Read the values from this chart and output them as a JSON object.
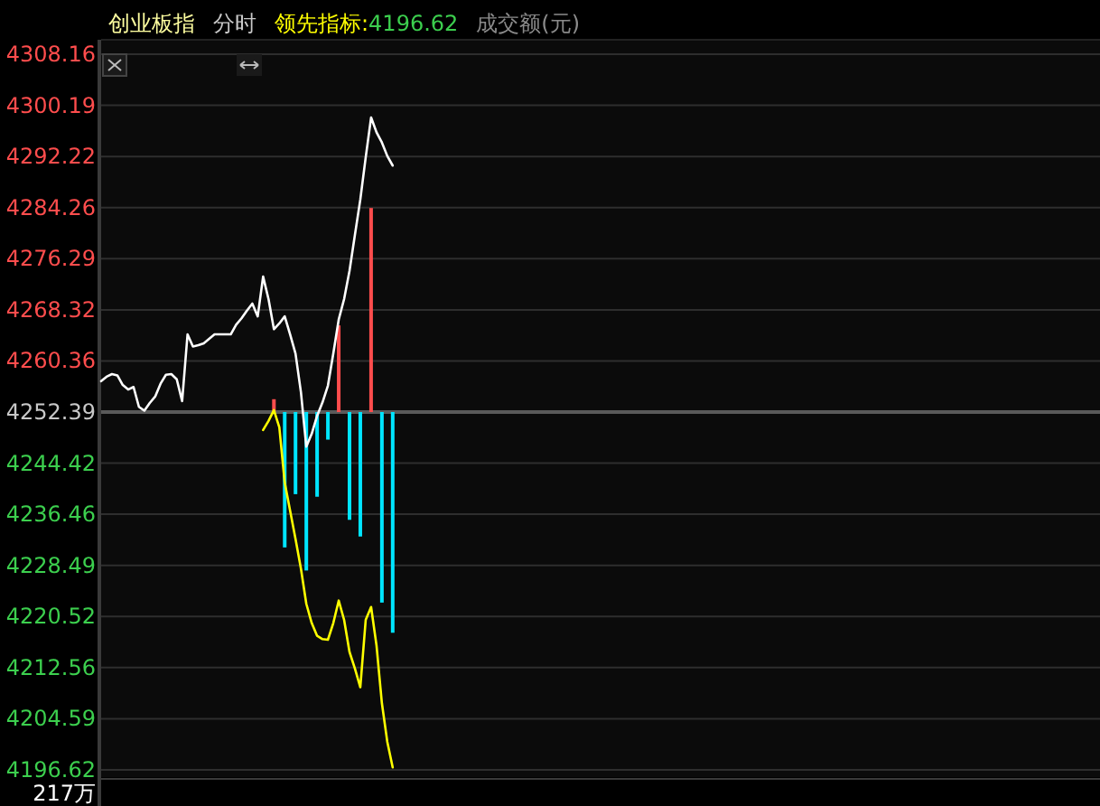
{
  "chart_data": {
    "type": "line",
    "title": "创业板指",
    "subtitle": "分时",
    "annotations": [
      "4196.62",
      "成交额(元)",
      "217万"
    ],
    "legend": "top",
    "grid": "y",
    "ylim": [
      4196.62,
      4308.16
    ],
    "yticks": [
      4308.16,
      4300.19,
      4292.22,
      4284.26,
      4276.29,
      4268.32,
      4260.36,
      4252.39,
      4244.42,
      4236.46,
      4228.49,
      4220.52,
      4212.56,
      4204.59,
      4196.62
    ],
    "ref_lines": [
      {
        "axis": "y",
        "value": 4252.39,
        "color": "#5a5a5a"
      }
    ],
    "categories": [
      null,
      null,
      null,
      null,
      null,
      null,
      null,
      null,
      null,
      null,
      null,
      null,
      null,
      null,
      null,
      null,
      null,
      null,
      null,
      null,
      null,
      null,
      null,
      null,
      null,
      null,
      null,
      null,
      null,
      null,
      null,
      null,
      null,
      null,
      null,
      null,
      null,
      null,
      null,
      null,
      null,
      null,
      null,
      null,
      null,
      null,
      null,
      null,
      null,
      null,
      null,
      null,
      null,
      null,
      null,
      null,
      null,
      null,
      null,
      null,
      null,
      null,
      null,
      null,
      null,
      null,
      null,
      null,
      null,
      null,
      null,
      null,
      null,
      null,
      null,
      null,
      null,
      null,
      null,
      null,
      null,
      null,
      null,
      null,
      null,
      null,
      null,
      null,
      null,
      null,
      null,
      null,
      null,
      null,
      null,
      null,
      null,
      null,
      null,
      null,
      null,
      null,
      null,
      null,
      null,
      null,
      null,
      null,
      null,
      null,
      null,
      null,
      null,
      null,
      null,
      null,
      null,
      null,
      null,
      null,
      null,
      null,
      null,
      null,
      null,
      null,
      null,
      null,
      null,
      null,
      null,
      null,
      null,
      null,
      null,
      null,
      null,
      null,
      null,
      null,
      null,
      null,
      null,
      null,
      null,
      null,
      null,
      null,
      null,
      null,
      null,
      null,
      null,
      null,
      null,
      null,
      null,
      null,
      null,
      null,
      null,
      null,
      null,
      null,
      null,
      null,
      null,
      null,
      null,
      null,
      null,
      null,
      null,
      null,
      null,
      null,
      null,
      null,
      null,
      null,
      null,
      null,
      null,
      null,
      null
    ],
    "series": [
      {
        "type": "bar",
        "base": [
          null,
          null,
          null,
          null,
          null,
          null,
          null,
          null,
          null,
          null,
          null,
          null,
          null,
          null,
          null,
          null,
          null,
          null,
          null,
          null,
          null,
          null,
          null,
          null,
          null,
          null,
          null,
          null,
          null,
          null,
          null,
          null,
          4252.39,
          null,
          4252.39,
          null,
          4252.39,
          null,
          4252.39,
          null,
          4252.39,
          null,
          4252.39,
          null,
          4252.39,
          null,
          4252.39,
          null,
          4252.39,
          null,
          4252.39,
          null,
          4252.39,
          null,
          4252.39,
          null,
          null,
          null,
          null,
          null,
          null,
          null,
          null,
          null,
          null,
          null,
          null,
          null,
          null,
          null,
          null,
          null,
          null,
          null,
          null,
          null,
          null,
          null,
          null,
          null,
          null,
          null,
          null,
          null,
          null,
          null,
          null,
          null,
          null,
          null,
          null,
          null,
          null,
          null,
          null,
          null,
          null,
          null,
          null,
          null,
          null,
          null,
          null,
          null,
          null,
          null,
          null,
          null,
          null,
          null,
          null,
          null,
          null,
          null,
          null,
          null,
          null,
          null,
          null,
          null,
          null,
          null,
          null,
          null,
          null,
          null,
          null,
          null,
          null,
          null,
          null,
          null,
          null,
          null,
          null,
          null,
          null,
          null,
          null,
          null,
          null,
          null,
          null,
          null,
          null,
          null,
          null,
          null,
          null,
          null,
          null,
          null,
          null,
          null,
          null,
          null,
          null,
          null,
          null,
          null,
          null,
          null,
          null,
          null,
          null,
          null,
          null,
          null,
          null,
          null,
          null,
          null,
          null,
          null,
          null,
          null,
          null,
          null,
          null,
          null,
          null,
          null,
          null,
          null,
          null
        ],
        "colors": [
          null,
          null,
          null,
          null,
          null,
          null,
          null,
          null,
          null,
          null,
          null,
          null,
          null,
          null,
          null,
          null,
          null,
          null,
          null,
          null,
          null,
          null,
          null,
          null,
          null,
          null,
          null,
          null,
          null,
          null,
          null,
          null,
          "#ff4d4d",
          null,
          "#00e5ff",
          null,
          "#00e5ff",
          null,
          "#00e5ff",
          null,
          "#00e5ff",
          null,
          "#00e5ff",
          null,
          "#ff4d4d",
          null,
          "#00e5ff",
          null,
          "#00e5ff",
          null,
          "#ff4d4d",
          null,
          "#00e5ff",
          null,
          "#00e5ff",
          null,
          null,
          null,
          null,
          null,
          null,
          null,
          null,
          null,
          null,
          null,
          null,
          null,
          null,
          null,
          null,
          null,
          null,
          null,
          null,
          null,
          null,
          null,
          null,
          null,
          null,
          null,
          null,
          null,
          null,
          null,
          null,
          null,
          null,
          null,
          null,
          null,
          null,
          null,
          null,
          null,
          null,
          null,
          null,
          null,
          null,
          null,
          null,
          null,
          null,
          null,
          null,
          null,
          null,
          null,
          null,
          null,
          null,
          null,
          null,
          null,
          null,
          null,
          null,
          null,
          null,
          null,
          null,
          null,
          null,
          null,
          null,
          null,
          null,
          null,
          null,
          null,
          null,
          null,
          null,
          null,
          null,
          null,
          null,
          null,
          null,
          null,
          null,
          null,
          null,
          null,
          null,
          null,
          null,
          null,
          null,
          null,
          null,
          null,
          null,
          null,
          null,
          null,
          null,
          null,
          null,
          null,
          null,
          null,
          null,
          null,
          null,
          null,
          null,
          null,
          null,
          null,
          null,
          null,
          null,
          null,
          null,
          null,
          null,
          null,
          null,
          null,
          null,
          null,
          null
        ],
        "values": [
          null,
          null,
          null,
          null,
          null,
          null,
          null,
          null,
          null,
          null,
          null,
          null,
          null,
          null,
          null,
          null,
          null,
          null,
          null,
          null,
          null,
          null,
          null,
          null,
          null,
          null,
          null,
          null,
          null,
          null,
          null,
          null,
          2.0,
          null,
          -21.1,
          null,
          -12.8,
          null,
          -24.7,
          null,
          -13.2,
          null,
          -4.3,
          null,
          13.5,
          null,
          -16.8,
          null,
          -19.4,
          null,
          31.8,
          null,
          -29.7,
          null,
          -34.4,
          null,
          null,
          null,
          null,
          null,
          null,
          null,
          null,
          null,
          null,
          null,
          null,
          null,
          null,
          null,
          null,
          null,
          null,
          null,
          null,
          null,
          null,
          null,
          null,
          null,
          null,
          null,
          null,
          null,
          null,
          null,
          null,
          null,
          null,
          null,
          null,
          null,
          null,
          null,
          null,
          null,
          null,
          null,
          null,
          null,
          null,
          null,
          null,
          null,
          null,
          null,
          null,
          null,
          null,
          null,
          null,
          null,
          null,
          null,
          null,
          null,
          null,
          null,
          null,
          null,
          null,
          null,
          null,
          null,
          null,
          null,
          null,
          null,
          null,
          null,
          null,
          null,
          null,
          null,
          null,
          null,
          null,
          null,
          null,
          null,
          null,
          null,
          null,
          null,
          null,
          null,
          null,
          null,
          null,
          null,
          null,
          null,
          null,
          null,
          null,
          null,
          null,
          null,
          null,
          null,
          null,
          null,
          null,
          null,
          null,
          null,
          null,
          null,
          null,
          null,
          null,
          null,
          null,
          null,
          null,
          null,
          null,
          null,
          null,
          null,
          null,
          null,
          null,
          null,
          null
        ]
      },
      {
        "color": "#ffffff",
        "values": [
          4257.2,
          4257.9,
          4258.3,
          4258.1,
          4256.6,
          4255.9,
          4256.3,
          4253.2,
          4252.6,
          4253.8,
          4254.8,
          4256.8,
          4258.2,
          4258.3,
          4257.5,
          4254.1,
          4264.5,
          4262.6,
          4262.8,
          4263.1,
          4263.8,
          4264.5,
          4264.5,
          4264.5,
          4264.5,
          4266.0,
          4267.0,
          4268.2,
          4269.3,
          4267.3,
          4273.5,
          4270.0,
          4265.3,
          4266.2,
          4267.3,
          4264.5,
          4261.5,
          4255.5,
          4247.0,
          4249.0,
          4251.8,
          4253.9,
          4256.5,
          4261.5,
          4266.8,
          4270.0,
          4274.4,
          4280.0,
          4285.5,
          4292.1,
          4298.3,
          4296.0,
          4294.4,
          4292.3,
          4290.8,
          null,
          null,
          null,
          null,
          null,
          null,
          null,
          null,
          null,
          null,
          null,
          null,
          null,
          null,
          null,
          null,
          null,
          null,
          null,
          null,
          null,
          null,
          null,
          null,
          null,
          null,
          null,
          null,
          null,
          null,
          null,
          null,
          null,
          null,
          null,
          null,
          null,
          null,
          null,
          null,
          null,
          null,
          null,
          null,
          null,
          null,
          null,
          null,
          null,
          null,
          null,
          null,
          null,
          null,
          null,
          null,
          null,
          null,
          null,
          null,
          null,
          null,
          null,
          null,
          null,
          null,
          null,
          null,
          null,
          null,
          null,
          null,
          null,
          null,
          null,
          null,
          null,
          null,
          null,
          null,
          null,
          null,
          null,
          null,
          null,
          null,
          null,
          null,
          null,
          null,
          null,
          null,
          null,
          null,
          null,
          null,
          null,
          null,
          null,
          null,
          null,
          null,
          null,
          null,
          null,
          null,
          null,
          null,
          null,
          null,
          null,
          null,
          null,
          null,
          null,
          null,
          null,
          null,
          null,
          null,
          null,
          null,
          null,
          null,
          null,
          null,
          null,
          null,
          null,
          null
        ]
      },
      {
        "name": "领先指标:",
        "color": "#ffff00",
        "values": [
          null,
          null,
          null,
          null,
          null,
          null,
          null,
          null,
          null,
          null,
          null,
          null,
          null,
          null,
          null,
          null,
          null,
          null,
          null,
          null,
          null,
          null,
          null,
          null,
          null,
          null,
          null,
          null,
          null,
          null,
          4249.6,
          4251.0,
          4252.7,
          4250.0,
          4241.4,
          4237.0,
          4232.6,
          4228.0,
          4222.5,
          4219.5,
          4217.5,
          4217.0,
          4216.9,
          4219.5,
          4223.0,
          4220.0,
          4215.0,
          4212.4,
          4209.5,
          4220.0,
          4222.0,
          4216.0,
          4207.0,
          4201.0,
          4197.0,
          null,
          null,
          null,
          null,
          null,
          null,
          null,
          null,
          null,
          null,
          null,
          null,
          null,
          null,
          null,
          null,
          null,
          null,
          null,
          null,
          null,
          null,
          null,
          null,
          null,
          null,
          null,
          null,
          null,
          null,
          null,
          null,
          null,
          null,
          null,
          null,
          null,
          null,
          null,
          null,
          null,
          null,
          null,
          null,
          null,
          null,
          null,
          null,
          null,
          null,
          null,
          null,
          null,
          null,
          null,
          null,
          null,
          null,
          null,
          null,
          null,
          null,
          null,
          null,
          null,
          null,
          null,
          null,
          null,
          null,
          null,
          null,
          null,
          null,
          null,
          null,
          null,
          null,
          null,
          null,
          null,
          null,
          null,
          null,
          null,
          null,
          null,
          null,
          null,
          null,
          null,
          null,
          null,
          null,
          null,
          null,
          null,
          null,
          null,
          null,
          null,
          null,
          null,
          null,
          null,
          null,
          null,
          null,
          null,
          null,
          null,
          null,
          null,
          null,
          null,
          null,
          null,
          null,
          null,
          null,
          null,
          null,
          null,
          null,
          null,
          null,
          null,
          null,
          null,
          null
        ]
      }
    ]
  }
}
